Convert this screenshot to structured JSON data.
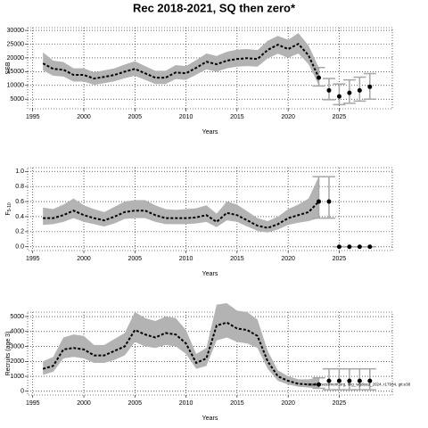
{
  "title": "Rec 2018-2021, SQ then zero*",
  "chart_data": [
    {
      "type": "line",
      "xlabel": "Years",
      "ylabel": "SSB",
      "x": [
        1996,
        1997,
        1998,
        1999,
        2000,
        2001,
        2002,
        2003,
        2004,
        2005,
        2006,
        2007,
        2008,
        2009,
        2010,
        2011,
        2012,
        2013,
        2014,
        2015,
        2016,
        2017,
        2018,
        2019,
        2020,
        2021,
        2022,
        2023
      ],
      "values": [
        18000,
        16000,
        15700,
        13800,
        13800,
        12500,
        13100,
        13800,
        15000,
        16000,
        14400,
        12800,
        12800,
        14700,
        14400,
        16400,
        18600,
        17700,
        19000,
        19600,
        19900,
        19600,
        22900,
        24800,
        23200,
        25100,
        20900,
        12800
      ],
      "lower": [
        15500,
        13500,
        13200,
        11400,
        11400,
        10200,
        10800,
        11500,
        12600,
        13500,
        12000,
        10500,
        10500,
        12300,
        12000,
        13900,
        15800,
        15000,
        16200,
        16800,
        17000,
        16800,
        19800,
        21500,
        20000,
        21600,
        17700,
        10000
      ],
      "upper": [
        22000,
        19000,
        18500,
        16200,
        16200,
        14800,
        15500,
        16200,
        17600,
        18800,
        17000,
        15300,
        15300,
        17400,
        17000,
        19200,
        21600,
        20700,
        22200,
        23000,
        23200,
        22800,
        26200,
        28000,
        26600,
        29000,
        24500,
        16500
      ],
      "proj_x": [
        2023,
        2024,
        2025,
        2026,
        2027,
        2028
      ],
      "proj_values": [
        12800,
        8200,
        6000,
        7300,
        8200,
        9500
      ],
      "proj_lower": [
        9800,
        4800,
        3000,
        3500,
        4300,
        5000
      ],
      "proj_upper": [
        16500,
        12500,
        10500,
        12000,
        13000,
        14300
      ],
      "xlim": [
        1994.5,
        2030.2
      ],
      "xticks": [
        1995,
        2000,
        2005,
        2010,
        2015,
        2020,
        2025
      ],
      "ylim": [
        1500,
        31000
      ],
      "yticks": [
        5000,
        10000,
        15000,
        20000,
        25000,
        30000
      ]
    },
    {
      "type": "line",
      "xlabel": "Years",
      "ylabel": "F",
      "ylabel_sub": "5-10",
      "x": [
        1996,
        1997,
        1998,
        1999,
        2000,
        2001,
        2002,
        2003,
        2004,
        2005,
        2006,
        2007,
        2008,
        2009,
        2010,
        2011,
        2012,
        2013,
        2014,
        2015,
        2016,
        2017,
        2018,
        2019,
        2020,
        2021,
        2022,
        2023
      ],
      "values": [
        0.38,
        0.38,
        0.42,
        0.48,
        0.42,
        0.38,
        0.35,
        0.4,
        0.46,
        0.48,
        0.48,
        0.42,
        0.38,
        0.38,
        0.38,
        0.39,
        0.42,
        0.33,
        0.45,
        0.42,
        0.35,
        0.28,
        0.25,
        0.3,
        0.38,
        0.42,
        0.46,
        0.6
      ],
      "lower": [
        0.29,
        0.3,
        0.33,
        0.38,
        0.33,
        0.3,
        0.27,
        0.31,
        0.37,
        0.38,
        0.38,
        0.33,
        0.3,
        0.3,
        0.3,
        0.31,
        0.33,
        0.26,
        0.35,
        0.33,
        0.27,
        0.21,
        0.19,
        0.23,
        0.29,
        0.32,
        0.34,
        0.38
      ],
      "upper": [
        0.52,
        0.5,
        0.56,
        0.64,
        0.55,
        0.5,
        0.46,
        0.53,
        0.6,
        0.62,
        0.62,
        0.55,
        0.5,
        0.49,
        0.5,
        0.51,
        0.55,
        0.44,
        0.6,
        0.56,
        0.47,
        0.38,
        0.34,
        0.4,
        0.5,
        0.56,
        0.64,
        0.93
      ],
      "proj_x": [
        2023,
        2024,
        2025,
        2026,
        2027,
        2028
      ],
      "proj_values": [
        0.6,
        0.6,
        0,
        0,
        0,
        0
      ],
      "proj_lower": [
        0.38,
        0.38,
        0,
        0,
        0,
        0
      ],
      "proj_upper": [
        0.93,
        0.93,
        0,
        0,
        0,
        0
      ],
      "xlim": [
        1994.5,
        2030.2
      ],
      "xticks": [
        1995,
        2000,
        2005,
        2010,
        2015,
        2020,
        2025
      ],
      "ylim": [
        -0.05,
        1.05
      ],
      "yticks": [
        {
          "value": 0,
          "label": "0.0"
        },
        0.2,
        0.4,
        0.6,
        0.8,
        {
          "value": 1,
          "label": "1.0"
        }
      ]
    },
    {
      "type": "line",
      "xlabel": "Years",
      "ylabel": "Recruits (age 3)",
      "annotation": "stockassessment.org, ling_wgdeep_2024, r17934, git:e38",
      "x": [
        1996,
        1997,
        1998,
        1999,
        2000,
        2001,
        2002,
        2003,
        2004,
        2005,
        2006,
        2007,
        2008,
        2009,
        2010,
        2011,
        2012,
        2013,
        2014,
        2015,
        2016,
        2017,
        2018,
        2019,
        2020,
        2021,
        2022,
        2023
      ],
      "values": [
        1500,
        1700,
        2800,
        2900,
        2800,
        2400,
        2400,
        2700,
        3000,
        4100,
        3800,
        3600,
        3900,
        3800,
        3200,
        1900,
        2200,
        4400,
        4600,
        4200,
        4100,
        3700,
        2000,
        1000,
        700,
        500,
        450,
        450
      ],
      "lower": [
        1100,
        1300,
        2200,
        2300,
        2200,
        1900,
        1900,
        2100,
        2400,
        3300,
        3000,
        2900,
        3100,
        3000,
        2500,
        1500,
        1700,
        3400,
        3600,
        3300,
        3200,
        2900,
        1500,
        700,
        450,
        300,
        250,
        200
      ],
      "upper": [
        2000,
        2300,
        3600,
        3800,
        3700,
        3100,
        3100,
        3500,
        3900,
        5300,
        4900,
        4700,
        5000,
        4900,
        4100,
        2500,
        2900,
        5800,
        5900,
        5400,
        5300,
        4800,
        2700,
        1400,
        1000,
        800,
        800,
        900
      ],
      "proj_x": [
        2023,
        2024,
        2025,
        2026,
        2027,
        2028
      ],
      "proj_values": [
        450,
        700,
        700,
        700,
        700,
        700
      ],
      "proj_lower": [
        200,
        100,
        100,
        100,
        100,
        100
      ],
      "proj_upper": [
        900,
        1500,
        1500,
        1500,
        1500,
        1500
      ],
      "xlim": [
        1994.5,
        2030.2
      ],
      "xticks": [
        1995,
        2000,
        2005,
        2010,
        2015,
        2020,
        2025
      ],
      "ylim": [
        -250,
        5300
      ],
      "yticks": [
        0,
        1000,
        2000,
        3000,
        4000,
        5000
      ]
    }
  ]
}
